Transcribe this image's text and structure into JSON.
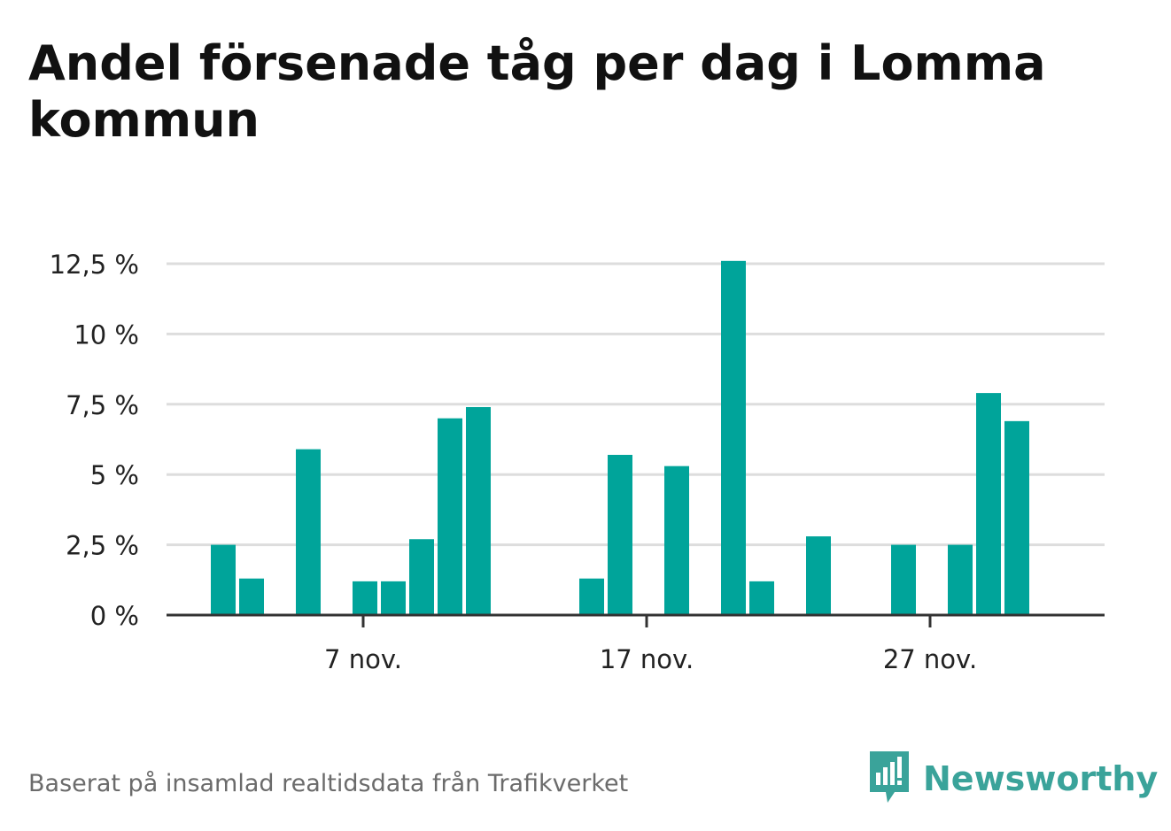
{
  "title": "Andel försenade tåg per dag i Lomma kommun",
  "footer": "Baserat på insamlad realtidsdata från Trafikverket",
  "brand": {
    "name": "Newsworthy",
    "icon": "newsworthy-logo-icon",
    "color": "#3aa39a"
  },
  "colors": {
    "bar": "#00a49a",
    "grid": "#dddddd",
    "axis": "#333333",
    "text": "#222222"
  },
  "chart_data": {
    "type": "bar",
    "title": "Andel försenade tåg per dag i Lomma kommun",
    "xlabel": "",
    "ylabel": "",
    "x_start_day": 1,
    "x_end_day": 30,
    "x_month": "nov.",
    "ylim": [
      0,
      12.5
    ],
    "grid": true,
    "y_ticks": [
      {
        "value": 0,
        "label": "0 %"
      },
      {
        "value": 2.5,
        "label": "2,5 %"
      },
      {
        "value": 5,
        "label": "5 %"
      },
      {
        "value": 7.5,
        "label": "7,5 %"
      },
      {
        "value": 10,
        "label": "10 %"
      },
      {
        "value": 12.5,
        "label": "12,5 %"
      }
    ],
    "x_ticks": [
      {
        "day": 7,
        "label": "7 nov."
      },
      {
        "day": 17,
        "label": "17 nov."
      },
      {
        "day": 27,
        "label": "27 nov."
      }
    ],
    "days": [
      2,
      3,
      5,
      7,
      8,
      9,
      10,
      11,
      15,
      16,
      18,
      20,
      21,
      23,
      26,
      28,
      29,
      30
    ],
    "values": [
      2.5,
      1.3,
      5.9,
      1.2,
      1.2,
      2.7,
      7.0,
      7.4,
      1.3,
      5.7,
      5.3,
      12.6,
      1.2,
      2.8,
      2.5,
      2.5,
      7.9,
      6.9
    ]
  }
}
